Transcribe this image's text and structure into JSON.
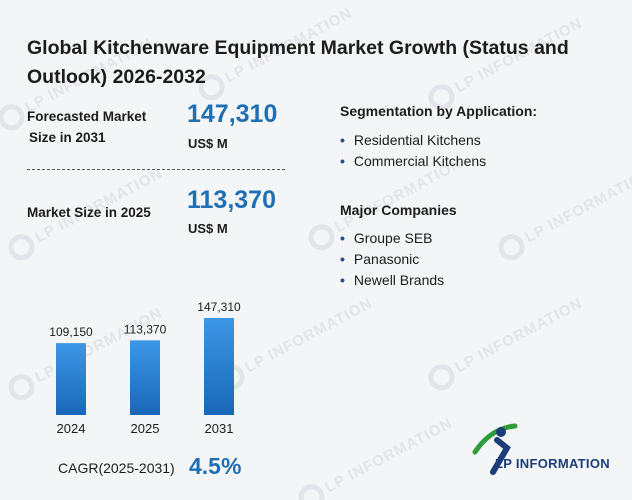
{
  "title": "Global Kitchenware Equipment Market Growth (Status and Outlook) 2026-2032",
  "forecast": {
    "label_line1": "Forecasted Market",
    "label_line2": "Size in 2031",
    "value": "147,310",
    "unit": "US$ M"
  },
  "current": {
    "label": "Market Size in 2025",
    "value": "113,370",
    "unit": "US$ M"
  },
  "segmentation": {
    "heading": "Segmentation by Application:",
    "items": [
      "Residential Kitchens",
      "Commercial Kitchens"
    ]
  },
  "companies": {
    "heading": "Major Companies",
    "items": [
      "Groupe SEB",
      "Panasonic",
      "Newell Brands"
    ]
  },
  "cagr": {
    "label": "CAGR(2025-2031)",
    "value": "4.5%"
  },
  "logo": {
    "text": "LP INFORMATION"
  },
  "watermark": "LP INFORMATION",
  "colors": {
    "accent": "#1f6fb4",
    "bar_top": "#3d97e6",
    "bar_bottom": "#1a67b8"
  },
  "chart_data": {
    "type": "bar",
    "categories": [
      "2024",
      "2025",
      "2031"
    ],
    "values": [
      109150,
      113370,
      147310
    ],
    "value_labels": [
      "109,150",
      "113,370",
      "147,310"
    ],
    "title": "",
    "xlabel": "",
    "ylabel": "",
    "ylim": [
      0,
      147310
    ],
    "grid": false,
    "legend": "none"
  }
}
